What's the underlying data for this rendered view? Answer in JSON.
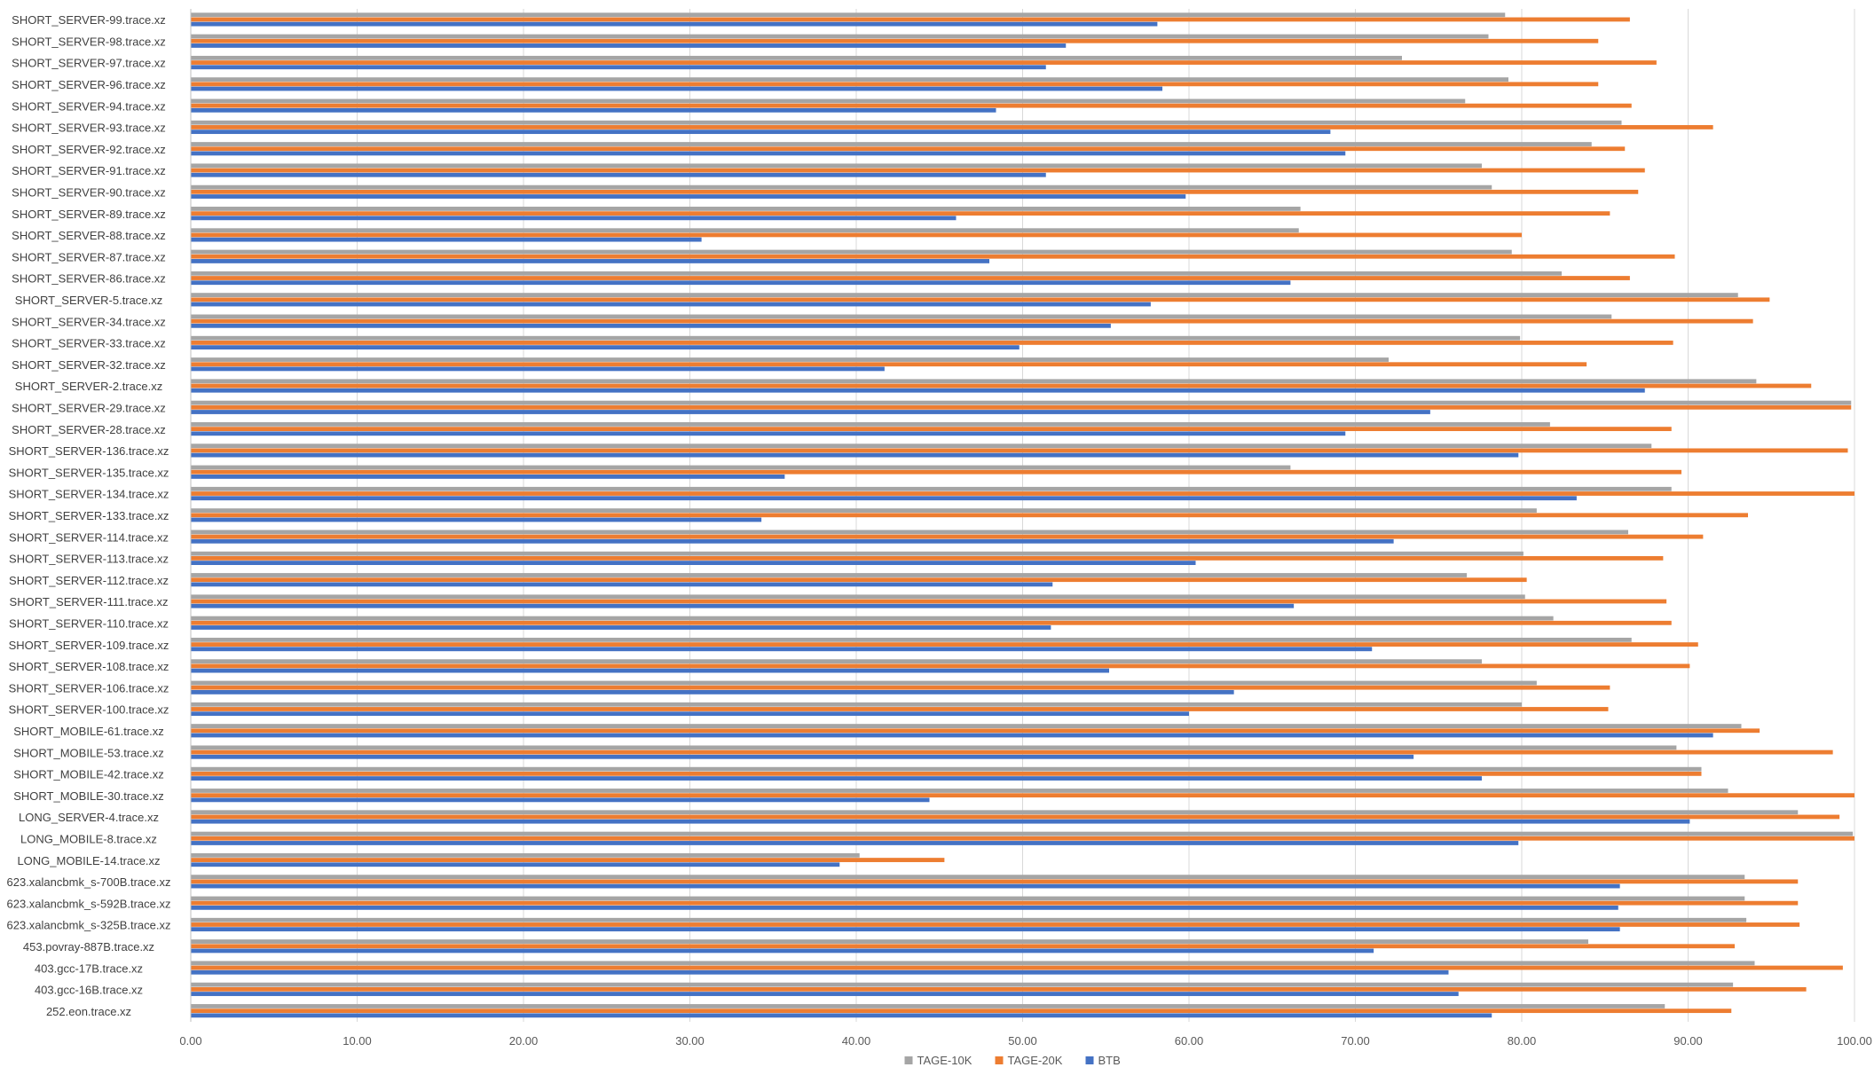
{
  "chart_data": {
    "type": "bar",
    "orientation": "horizontal",
    "title": "",
    "xlabel": "",
    "ylabel": "",
    "xlim": [
      0,
      100
    ],
    "x_ticks": [
      0,
      10,
      20,
      30,
      40,
      50,
      60,
      70,
      80,
      90,
      100
    ],
    "x_tick_labels": [
      "0.00",
      "10.00",
      "20.00",
      "30.00",
      "40.00",
      "50.00",
      "60.00",
      "70.00",
      "80.00",
      "90.00",
      "100.00"
    ],
    "grid": "vertical",
    "legend_position": "bottom",
    "categories": [
      "SHORT_SERVER-99.trace.xz",
      "SHORT_SERVER-98.trace.xz",
      "SHORT_SERVER-97.trace.xz",
      "SHORT_SERVER-96.trace.xz",
      "SHORT_SERVER-94.trace.xz",
      "SHORT_SERVER-93.trace.xz",
      "SHORT_SERVER-92.trace.xz",
      "SHORT_SERVER-91.trace.xz",
      "SHORT_SERVER-90.trace.xz",
      "SHORT_SERVER-89.trace.xz",
      "SHORT_SERVER-88.trace.xz",
      "SHORT_SERVER-87.trace.xz",
      "SHORT_SERVER-86.trace.xz",
      "SHORT_SERVER-5.trace.xz",
      "SHORT_SERVER-34.trace.xz",
      "SHORT_SERVER-33.trace.xz",
      "SHORT_SERVER-32.trace.xz",
      "SHORT_SERVER-2.trace.xz",
      "SHORT_SERVER-29.trace.xz",
      "SHORT_SERVER-28.trace.xz",
      "SHORT_SERVER-136.trace.xz",
      "SHORT_SERVER-135.trace.xz",
      "SHORT_SERVER-134.trace.xz",
      "SHORT_SERVER-133.trace.xz",
      "SHORT_SERVER-114.trace.xz",
      "SHORT_SERVER-113.trace.xz",
      "SHORT_SERVER-112.trace.xz",
      "SHORT_SERVER-111.trace.xz",
      "SHORT_SERVER-110.trace.xz",
      "SHORT_SERVER-109.trace.xz",
      "SHORT_SERVER-108.trace.xz",
      "SHORT_SERVER-106.trace.xz",
      "SHORT_SERVER-100.trace.xz",
      "SHORT_MOBILE-61.trace.xz",
      "SHORT_MOBILE-53.trace.xz",
      "SHORT_MOBILE-42.trace.xz",
      "SHORT_MOBILE-30.trace.xz",
      "LONG_SERVER-4.trace.xz",
      "LONG_MOBILE-8.trace.xz",
      "LONG_MOBILE-14.trace.xz",
      "623.xalancbmk_s-700B.trace.xz",
      "623.xalancbmk_s-592B.trace.xz",
      "623.xalancbmk_s-325B.trace.xz",
      "453.povray-887B.trace.xz",
      "403.gcc-17B.trace.xz",
      "403.gcc-16B.trace.xz",
      "252.eon.trace.xz"
    ],
    "series": [
      {
        "name": "TAGE-10K",
        "color": "#a5a5a5",
        "values": [
          79.0,
          78.0,
          72.8,
          79.2,
          76.6,
          86.0,
          84.2,
          77.6,
          78.2,
          66.7,
          66.6,
          79.4,
          82.4,
          93.0,
          85.4,
          79.9,
          72.0,
          94.1,
          99.8,
          81.7,
          87.8,
          66.1,
          89.0,
          80.9,
          86.4,
          80.1,
          76.7,
          80.2,
          81.9,
          86.6,
          77.6,
          80.9,
          80.0,
          93.2,
          89.3,
          90.8,
          92.4,
          96.6,
          99.9,
          40.2,
          93.4,
          93.4,
          93.5,
          84.0,
          94.0,
          92.7,
          88.6
        ]
      },
      {
        "name": "TAGE-20K",
        "color": "#ed7d31",
        "values": [
          86.5,
          84.6,
          88.1,
          84.6,
          86.6,
          91.5,
          86.2,
          87.4,
          87.0,
          85.3,
          80.0,
          89.2,
          86.5,
          94.9,
          93.9,
          89.1,
          83.9,
          97.4,
          99.8,
          89.0,
          99.6,
          89.6,
          100.0,
          93.6,
          90.9,
          88.5,
          80.3,
          88.7,
          89.0,
          90.6,
          90.1,
          85.3,
          85.2,
          94.3,
          98.7,
          90.8,
          100.0,
          99.1,
          100.0,
          45.3,
          96.6,
          96.6,
          96.7,
          92.8,
          99.3,
          97.1,
          92.6
        ]
      },
      {
        "name": "BTB",
        "color": "#4472c4",
        "values": [
          58.1,
          52.6,
          51.4,
          58.4,
          48.4,
          68.5,
          69.4,
          51.4,
          59.8,
          46.0,
          30.7,
          48.0,
          66.1,
          57.7,
          55.3,
          49.8,
          41.7,
          87.4,
          74.5,
          69.4,
          79.8,
          35.7,
          83.3,
          34.3,
          72.3,
          60.4,
          51.8,
          66.3,
          51.7,
          71.0,
          55.2,
          62.7,
          60.0,
          91.5,
          73.5,
          77.6,
          44.4,
          90.1,
          79.8,
          39.0,
          85.9,
          85.8,
          85.9,
          71.1,
          75.6,
          76.2,
          78.2
        ]
      }
    ]
  }
}
